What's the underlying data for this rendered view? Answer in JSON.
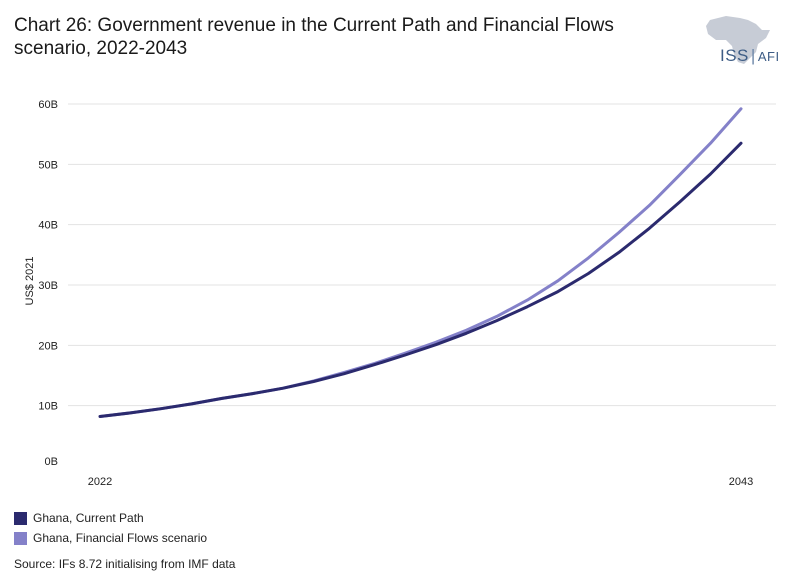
{
  "title": "Chart 26: Government revenue in the Current Path and Financial Flows scenario, 2022-2043",
  "logo": {
    "iss": "ISS",
    "afi": "AFI"
  },
  "source": "Source: IFs 8.72 initialising from IMF data",
  "colors": {
    "current_path": "#2b2a6e",
    "financial_flows": "#8481c9",
    "grid": "#e3e3e3",
    "logo": "#3d5c85"
  },
  "chart_data": {
    "type": "line",
    "title": "Chart 26: Government revenue in the Current Path and Financial Flows scenario, 2022-2043",
    "ylabel": "US$ 2021",
    "xlabel": "",
    "ylim": [
      0,
      60
    ],
    "y_unit": "B",
    "yticks": [
      "0B",
      "10B",
      "20B",
      "30B",
      "40B",
      "50B",
      "60B"
    ],
    "xtick_labels": [
      "2022",
      "2043"
    ],
    "x": [
      2022,
      2023,
      2024,
      2025,
      2026,
      2027,
      2028,
      2029,
      2030,
      2031,
      2032,
      2033,
      2034,
      2035,
      2036,
      2037,
      2038,
      2039,
      2040,
      2041,
      2042,
      2043
    ],
    "grid": true,
    "legend_position": "bottom-left",
    "series": [
      {
        "name": "Ghana, Current Path",
        "color": "#2b2a6e",
        "values": [
          8.2,
          8.8,
          9.5,
          10.3,
          11.2,
          12.0,
          12.9,
          14.0,
          15.3,
          16.8,
          18.4,
          20.1,
          22.0,
          24.1,
          26.4,
          28.9,
          31.9,
          35.4,
          39.4,
          43.8,
          48.4,
          53.5
        ]
      },
      {
        "name": "Ghana, Financial Flows scenario",
        "color": "#8481c9",
        "values": [
          8.2,
          8.8,
          9.5,
          10.3,
          11.2,
          12.0,
          12.9,
          14.1,
          15.5,
          17.0,
          18.7,
          20.5,
          22.5,
          24.8,
          27.5,
          30.7,
          34.5,
          38.7,
          43.2,
          48.3,
          53.5,
          59.2
        ]
      }
    ]
  }
}
